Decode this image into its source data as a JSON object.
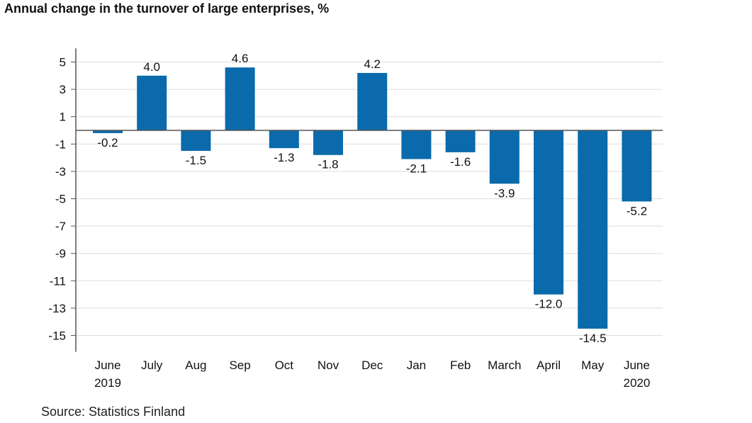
{
  "title": "Annual change in the turnover of large enterprises, %",
  "source": "Source: Statistics Finland",
  "colors": {
    "bar": "#0a6aab",
    "grid": "#dddddd",
    "axis": "#555555"
  },
  "chart_data": {
    "type": "bar",
    "categories": [
      {
        "line1": "June",
        "line2": "2019"
      },
      {
        "line1": "July",
        "line2": ""
      },
      {
        "line1": "Aug",
        "line2": ""
      },
      {
        "line1": "Sep",
        "line2": ""
      },
      {
        "line1": "Oct",
        "line2": ""
      },
      {
        "line1": "Nov",
        "line2": ""
      },
      {
        "line1": "Dec",
        "line2": ""
      },
      {
        "line1": "Jan",
        "line2": ""
      },
      {
        "line1": "Feb",
        "line2": ""
      },
      {
        "line1": "March",
        "line2": ""
      },
      {
        "line1": "April",
        "line2": ""
      },
      {
        "line1": "May",
        "line2": ""
      },
      {
        "line1": "June",
        "line2": "2020"
      }
    ],
    "values": [
      -0.2,
      4.0,
      -1.5,
      4.6,
      -1.3,
      -1.8,
      4.2,
      -2.1,
      -1.6,
      -3.9,
      -12.0,
      -14.5,
      -5.2
    ],
    "labels": [
      "-0.2",
      "4.0",
      "-1.5",
      "4.6",
      "-1.3",
      "-1.8",
      "4.2",
      "-2.1",
      "-1.6",
      "-3.9",
      "-12.0",
      "-14.5",
      "-5.2"
    ],
    "yticks": [
      5,
      3,
      1,
      -1,
      -3,
      -5,
      -7,
      -9,
      -11,
      -13,
      -15
    ],
    "ylim": [
      -16,
      6
    ],
    "grid": true
  }
}
